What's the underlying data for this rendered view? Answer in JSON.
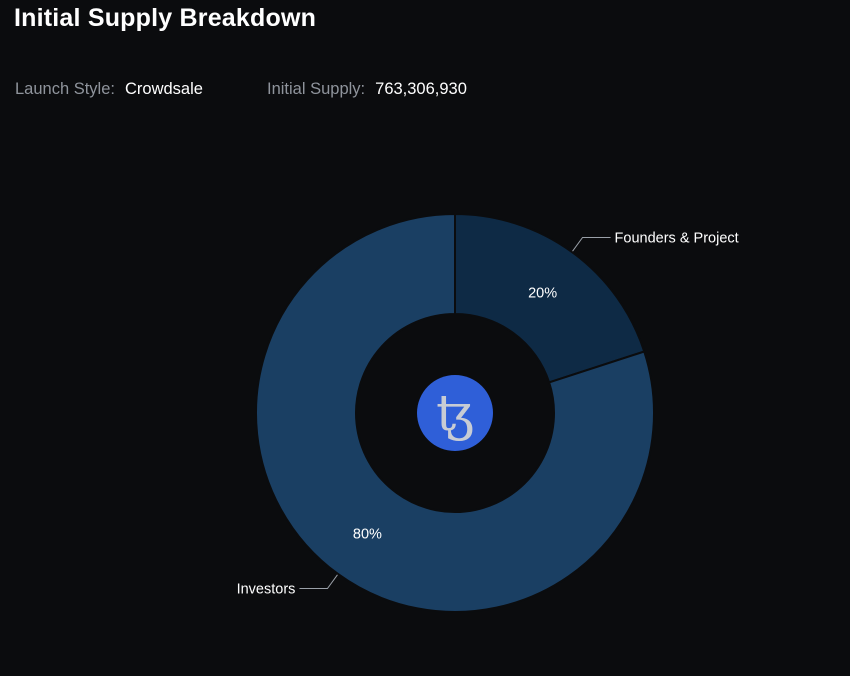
{
  "header": {
    "title": "Initial Supply Breakdown"
  },
  "meta": {
    "launch_style_label": "Launch Style:",
    "launch_style_value": "Crowdsale",
    "initial_supply_label": "Initial Supply:",
    "initial_supply_value": "763,306,930"
  },
  "center_logo": {
    "icon": "tezos-logo-icon",
    "glyph": "ꜩ",
    "color": "#2f5fd8"
  },
  "colors": {
    "background": "#0b0c0e",
    "slice_borders": "#0b0c0e",
    "leader_line": "#9aa0a8"
  },
  "chart_data": {
    "type": "pie",
    "style": "donut",
    "title": "Initial Supply Breakdown",
    "slices": [
      {
        "name": "Founders & Project",
        "value": 20,
        "label": "20%",
        "color": "#0e2a45"
      },
      {
        "name": "Investors",
        "value": 80,
        "label": "80%",
        "color": "#1a3f63"
      }
    ]
  }
}
